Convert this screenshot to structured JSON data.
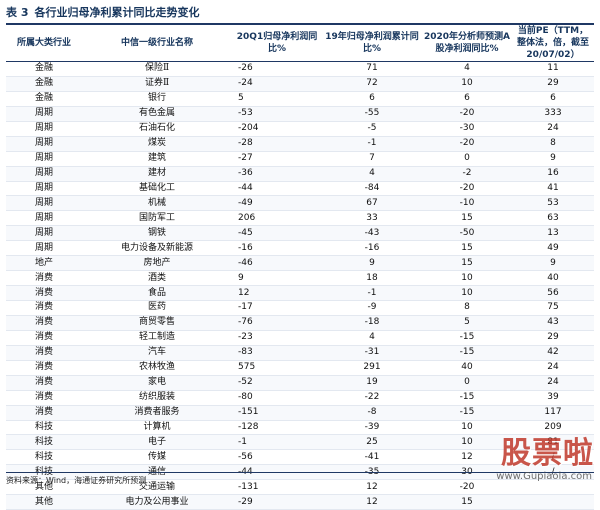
{
  "title": {
    "number": "表 3",
    "text": "各行业归母净利累计同比走势变化"
  },
  "table": {
    "headers": [
      "所属大类行业",
      "中信一级行业名称",
      "20Q1归母净利润同比%",
      "19年归母净利润累计同比%",
      "2020年分析师预测A股净利润同比%",
      "当前PE（TTM，整体法，倍，截至20/07/02）"
    ],
    "rows": [
      [
        "金融",
        "保险Ⅱ",
        "-26",
        "71",
        "4",
        "11"
      ],
      [
        "金融",
        "证券Ⅱ",
        "-24",
        "72",
        "10",
        "29"
      ],
      [
        "金融",
        "银行",
        "5",
        "6",
        "6",
        "6"
      ],
      [
        "周期",
        "有色金属",
        "-53",
        "-55",
        "-20",
        "333"
      ],
      [
        "周期",
        "石油石化",
        "-204",
        "-5",
        "-30",
        "24"
      ],
      [
        "周期",
        "煤炭",
        "-28",
        "-1",
        "-20",
        "8"
      ],
      [
        "周期",
        "建筑",
        "-27",
        "7",
        "0",
        "9"
      ],
      [
        "周期",
        "建材",
        "-36",
        "4",
        "-2",
        "16"
      ],
      [
        "周期",
        "基础化工",
        "-44",
        "-84",
        "-20",
        "41"
      ],
      [
        "周期",
        "机械",
        "-49",
        "67",
        "-10",
        "53"
      ],
      [
        "周期",
        "国防军工",
        "206",
        "33",
        "15",
        "63"
      ],
      [
        "周期",
        "钢铁",
        "-45",
        "-43",
        "-50",
        "13"
      ],
      [
        "周期",
        "电力设备及新能源",
        "-16",
        "-16",
        "15",
        "49"
      ],
      [
        "地产",
        "房地产",
        "-46",
        "9",
        "15",
        "9"
      ],
      [
        "消费",
        "酒类",
        "9",
        "18",
        "10",
        "40"
      ],
      [
        "消费",
        "食品",
        "12",
        "-1",
        "10",
        "56"
      ],
      [
        "消费",
        "医药",
        "-17",
        "-9",
        "8",
        "75"
      ],
      [
        "消费",
        "商贸零售",
        "-76",
        "-18",
        "5",
        "43"
      ],
      [
        "消费",
        "轻工制造",
        "-23",
        "4",
        "-15",
        "29"
      ],
      [
        "消费",
        "汽车",
        "-83",
        "-31",
        "-15",
        "42"
      ],
      [
        "消费",
        "农林牧渔",
        "575",
        "291",
        "40",
        "24"
      ],
      [
        "消费",
        "家电",
        "-52",
        "19",
        "0",
        "24"
      ],
      [
        "消费",
        "纺织服装",
        "-80",
        "-22",
        "-15",
        "39"
      ],
      [
        "消费",
        "消费者服务",
        "-151",
        "-8",
        "-15",
        "117"
      ],
      [
        "科技",
        "计算机",
        "-128",
        "-39",
        "10",
        "209"
      ],
      [
        "科技",
        "电子",
        "-1",
        "25",
        "10",
        "81"
      ],
      [
        "科技",
        "传媒",
        "-56",
        "-41",
        "12",
        "/"
      ],
      [
        "科技",
        "通信",
        "-44",
        "-35",
        "30",
        "/"
      ],
      [
        "其他",
        "交通运输",
        "-131",
        "12",
        "-20",
        ""
      ],
      [
        "其他",
        "电力及公用事业",
        "-29",
        "12",
        "15",
        ""
      ]
    ]
  },
  "source": "资料来源：Wind，海通证券研究所预测",
  "watermark": {
    "brand": "股票啦",
    "url": "www.Gupiaola.com",
    "brand_color": "#c0392b"
  }
}
